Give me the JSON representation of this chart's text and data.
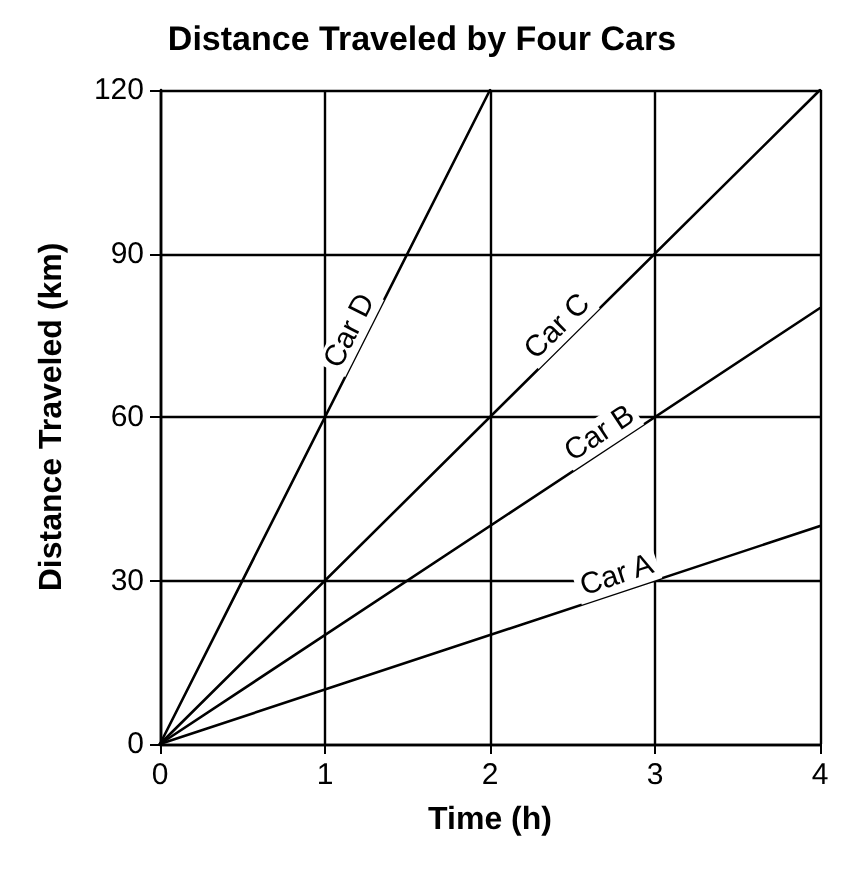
{
  "chart_data": {
    "type": "line",
    "title": "Distance Traveled by Four Cars",
    "xlabel": "Time (h)",
    "ylabel": "Distance Traveled (km)",
    "series": [
      {
        "name": "Car A",
        "color": "#000000",
        "x": [
          0,
          4
        ],
        "values": [
          0,
          40
        ]
      },
      {
        "name": "Car B",
        "color": "#000000",
        "x": [
          0,
          4
        ],
        "values": [
          0,
          80
        ]
      },
      {
        "name": "Car C",
        "color": "#000000",
        "x": [
          0,
          4
        ],
        "values": [
          0,
          120
        ]
      },
      {
        "name": "Car D",
        "color": "#000000",
        "x": [
          0,
          2
        ],
        "values": [
          0,
          120
        ]
      }
    ],
    "xlim": [
      0,
      4
    ],
    "xticks": [
      0,
      1,
      2,
      3,
      4
    ],
    "ylim": [
      0,
      120
    ],
    "yticks": [
      0,
      30,
      60,
      90,
      120
    ],
    "grid": true,
    "marker": "none",
    "line_style": "solid"
  }
}
